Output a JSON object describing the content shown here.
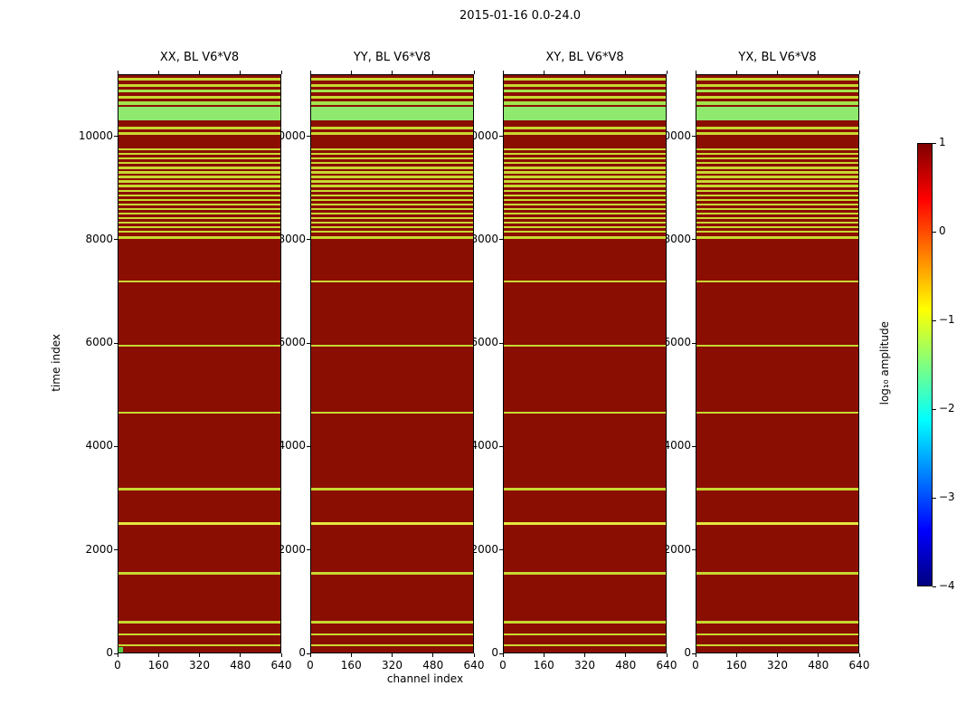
{
  "figure": {
    "title": "2015-01-16 0.0-24.0",
    "background": "#ffffff"
  },
  "chart_data": {
    "type": "heatmap",
    "title": "2015-01-16 0.0-24.0",
    "panels": [
      {
        "title": "XX, BL V6*V8"
      },
      {
        "title": "YY, BL V6*V8"
      },
      {
        "title": "XY, BL V6*V8"
      },
      {
        "title": "YX, BL V6*V8"
      }
    ],
    "x": {
      "label": "channel index",
      "range": [
        0,
        640
      ],
      "ticks": [
        0,
        160,
        320,
        480,
        640
      ]
    },
    "y": {
      "label": "time index",
      "range": [
        0,
        11200
      ],
      "ticks": [
        0,
        2000,
        4000,
        6000,
        8000,
        10000
      ]
    },
    "colorbar": {
      "label": "log₁₀ amplitude",
      "colormap": "jet",
      "range": [
        -4,
        1
      ],
      "ticks": [
        1,
        0,
        -1,
        -2,
        -3,
        -4
      ],
      "tick_labels": [
        "1",
        "0",
        "−1",
        "−2",
        "−3",
        "−4"
      ],
      "gradient": [
        {
          "pos": 0.0,
          "color": "#800000"
        },
        {
          "pos": 0.125,
          "color": "#ff0000"
        },
        {
          "pos": 0.375,
          "color": "#ffff00"
        },
        {
          "pos": 0.625,
          "color": "#00ffff"
        },
        {
          "pos": 0.875,
          "color": "#0000ff"
        },
        {
          "pos": 1.0,
          "color": "#000080"
        }
      ]
    },
    "base": {
      "value": 0.95,
      "color": "#8b0e03"
    },
    "stripes": [
      {
        "t0": 11090,
        "t1": 11150,
        "value": -1.0,
        "color": "#c8d832"
      },
      {
        "t0": 10975,
        "t1": 11030,
        "value": -1.0,
        "color": "#c8d832"
      },
      {
        "t0": 10860,
        "t1": 10915,
        "value": -1.3,
        "color": "#a2e54c"
      },
      {
        "t0": 10745,
        "t1": 10800,
        "value": -1.0,
        "color": "#c8d832"
      },
      {
        "t0": 10630,
        "t1": 10690,
        "value": -1.3,
        "color": "#a2e54c"
      },
      {
        "t0": 10330,
        "t1": 10590,
        "value": -1.5,
        "color": "#8fe96e"
      },
      {
        "t0": 10150,
        "t1": 10205,
        "value": -1.0,
        "color": "#c8d832"
      },
      {
        "t0": 10040,
        "t1": 10095,
        "value": -1.0,
        "color": "#c8d832"
      },
      {
        "t0": 9740,
        "t1": 9778,
        "value": -1.0,
        "color": "#c8d832"
      },
      {
        "t0": 9652,
        "t1": 9690,
        "value": -1.0,
        "color": "#c8d832"
      },
      {
        "t0": 9564,
        "t1": 9602,
        "value": -1.0,
        "color": "#c8d832"
      },
      {
        "t0": 9476,
        "t1": 9514,
        "value": -1.0,
        "color": "#c8d832"
      },
      {
        "t0": 9388,
        "t1": 9426,
        "value": -1.0,
        "color": "#c8d832"
      },
      {
        "t0": 9300,
        "t1": 9338,
        "value": -1.0,
        "color": "#c8d832"
      },
      {
        "t0": 9212,
        "t1": 9250,
        "value": -1.0,
        "color": "#c8d832"
      },
      {
        "t0": 9124,
        "t1": 9162,
        "value": -1.0,
        "color": "#c8d832"
      },
      {
        "t0": 9036,
        "t1": 9074,
        "value": -1.0,
        "color": "#c8d832"
      },
      {
        "t0": 8948,
        "t1": 8986,
        "value": -1.0,
        "color": "#c8d832"
      },
      {
        "t0": 8860,
        "t1": 8898,
        "value": -1.0,
        "color": "#c8d832"
      },
      {
        "t0": 8772,
        "t1": 8810,
        "value": -1.0,
        "color": "#c8d832"
      },
      {
        "t0": 8684,
        "t1": 8722,
        "value": -1.0,
        "color": "#c8d832"
      },
      {
        "t0": 8596,
        "t1": 8634,
        "value": -1.0,
        "color": "#c8d832"
      },
      {
        "t0": 8508,
        "t1": 8546,
        "value": -1.0,
        "color": "#c8d832"
      },
      {
        "t0": 8420,
        "t1": 8458,
        "value": -1.0,
        "color": "#c8d832"
      },
      {
        "t0": 8332,
        "t1": 8370,
        "value": -1.0,
        "color": "#c8d832"
      },
      {
        "t0": 8244,
        "t1": 8282,
        "value": -1.0,
        "color": "#c8d832"
      },
      {
        "t0": 8156,
        "t1": 8194,
        "value": -1.0,
        "color": "#c8d832"
      },
      {
        "t0": 8040,
        "t1": 8078,
        "value": -1.0,
        "color": "#c8d832"
      },
      {
        "t0": 7195,
        "t1": 7235,
        "value": -1.0,
        "color": "#c8d832"
      },
      {
        "t0": 5950,
        "t1": 5990,
        "value": -1.0,
        "color": "#c8d832"
      },
      {
        "t0": 4655,
        "t1": 4695,
        "value": -1.0,
        "color": "#c8d832"
      },
      {
        "t0": 3175,
        "t1": 3215,
        "value": -1.0,
        "color": "#c8d832"
      },
      {
        "t0": 2495,
        "t1": 2560,
        "value": -0.8,
        "color": "#e4e83e"
      },
      {
        "t0": 1545,
        "t1": 1585,
        "value": -1.0,
        "color": "#c8d832"
      },
      {
        "t0": 600,
        "t1": 640,
        "value": -1.0,
        "color": "#c8d832"
      },
      {
        "t0": 370,
        "t1": 405,
        "value": -1.0,
        "color": "#c8d832"
      },
      {
        "t0": 160,
        "t1": 195,
        "value": -1.0,
        "color": "#c8d832"
      }
    ],
    "corner_marker": {
      "panel_index": 0,
      "t0": 0,
      "t1": 100,
      "c0": 0,
      "c1": 18,
      "value": -1.5,
      "color": "#55cc44"
    }
  }
}
